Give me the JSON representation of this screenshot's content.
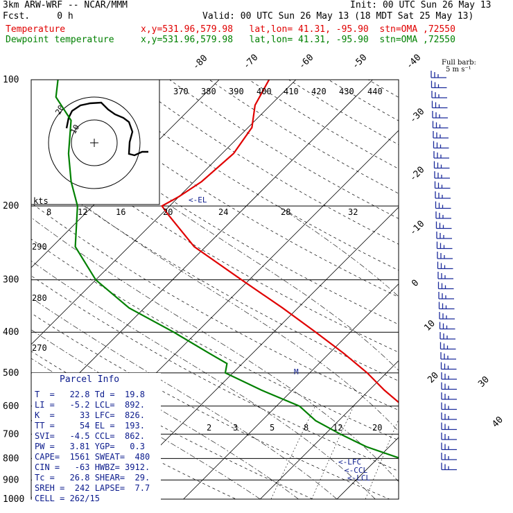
{
  "header": {
    "model": "3km ARW-WRF -- NCAR/MMM",
    "init": "Init: 00 UTC Sun 26 May 13",
    "fcst": "Fcst.     0 h",
    "valid": "Valid: 00 UTC Sun 26 May 13 (18 MDT Sat 25 May 13)",
    "temp_label": "Temperature",
    "temp_loc": "x,y=531.96,579.98   lat,lon= 41.31, -95.90  stn=OMA ,72550",
    "dew_label": "Dewpoint temperature",
    "dew_loc": "x,y=531.96,579.98   lat,lon= 41.31, -95.90  stn=OMA ,72550"
  },
  "parcel_info": {
    "title": "Parcel Info",
    "rows": [
      "T  =   22.8 Td =  19.8",
      "LI =   -5.2 LCL=  892.",
      "K  =     33 LFC=  826.",
      "TT =     54 EL =  193.",
      "SVI=   -4.5 CCL=  862.",
      "PW =   3.81 YGP=   0.3",
      "CAPE=  1561 SWEAT=  480",
      "CIN =   -63 HWBZ= 3912.",
      "Tc =   26.8 SHEAR=  29.",
      "SREH =  242 LAPSE=  7.7",
      "CELL = 262/15"
    ]
  },
  "colors": {
    "temperature": "#e00000",
    "dewpoint": "#008000",
    "annotation": "#0a1a8c"
  },
  "chart_data": {
    "type": "line",
    "y_axis": "pressure (hPa), log scale",
    "p_ticks": [
      100,
      200,
      300,
      400,
      500,
      600,
      700,
      800,
      900,
      1000
    ],
    "isotherm_labels": [
      "-80",
      "-70",
      "-60",
      "-50",
      "-40",
      "-30",
      "-20",
      "-10",
      "0",
      "10",
      "20",
      "30",
      "40"
    ],
    "theta_labels": [
      "370",
      "380",
      "390",
      "400",
      "410",
      "420",
      "430",
      "440"
    ],
    "mixratio_labels": [
      "2",
      "3",
      "5",
      "8",
      "12",
      "20"
    ],
    "low_theta_labels": [
      "290",
      "280",
      "270"
    ],
    "hodograph": {
      "speed_unit": "kts",
      "scale_labels": [
        "8",
        "12",
        "16",
        "20",
        "24",
        "28",
        "32"
      ],
      "rings": [
        "10",
        "20"
      ]
    },
    "wind_note": "Full barb: 5 m s⁻¹",
    "levels": {
      "EL": "<-EL",
      "LFC": "<-LFC",
      "CCL": "<-CCL",
      "LCL": "<-LCL",
      "M": "M"
    },
    "series": [
      {
        "name": "Temperature",
        "p": [
          985,
          950,
          925,
          900,
          875,
          850,
          825,
          800,
          775,
          750,
          700,
          650,
          600,
          550,
          500,
          450,
          400,
          350,
          300,
          250,
          210,
          200,
          190,
          175,
          150,
          130,
          115,
          100
        ],
        "t": [
          23.5,
          21.0,
          19.0,
          17.0,
          15.5,
          14.0,
          12.0,
          10.0,
          8.5,
          7.0,
          3.2,
          0.5,
          -3.5,
          -8.0,
          -12.5,
          -18.0,
          -24.5,
          -32.0,
          -41.0,
          -51.5,
          -59.0,
          -61.0,
          -60.0,
          -59.0,
          -58.5,
          -59.5,
          -62.0,
          -63.5
        ]
      },
      {
        "name": "Dewpoint temperature",
        "p": [
          985,
          950,
          925,
          900,
          875,
          850,
          825,
          800,
          750,
          700,
          650,
          600,
          550,
          500,
          475,
          450,
          400,
          350,
          300,
          250,
          200,
          175,
          150,
          125,
          110,
          100
        ],
        "t": [
          19.5,
          18.5,
          18.0,
          17.0,
          15.0,
          13.0,
          8.0,
          3.0,
          -3.0,
          -8.0,
          -13.0,
          -17.0,
          -24.0,
          -31.0,
          -32.0,
          -35.5,
          -43.0,
          -52.0,
          -60.0,
          -67.0,
          -72.0,
          -76.0,
          -80.0,
          -84.0,
          -89.0,
          -91.0
        ]
      }
    ]
  }
}
